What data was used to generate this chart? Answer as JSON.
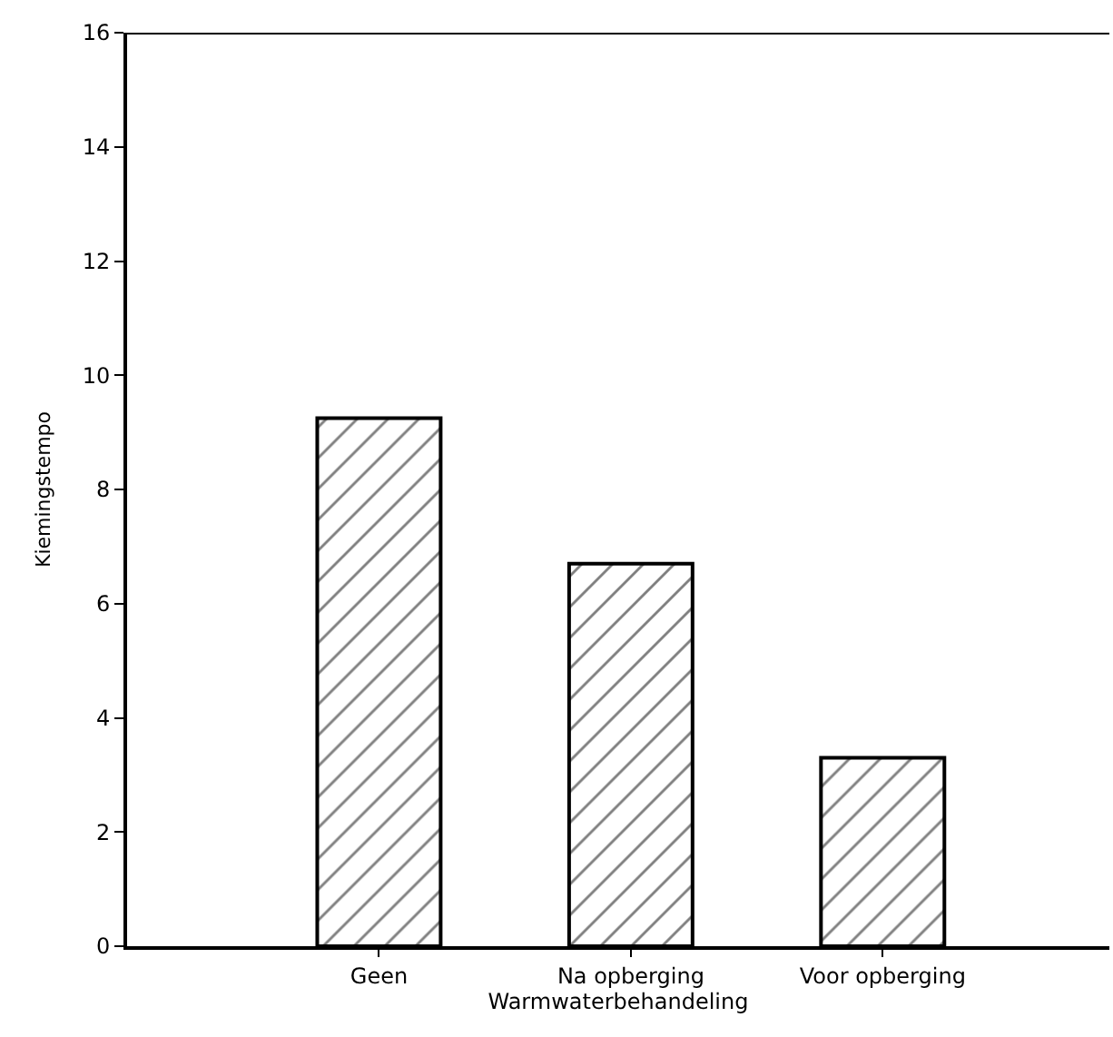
{
  "chart_data": {
    "type": "bar",
    "xlabel": "Warmwaterbehandeling",
    "ylabel": "Kiemingstempo",
    "categories": [
      "Geen",
      "Na opberging",
      "Voor opberging"
    ],
    "values": [
      9.25,
      6.7,
      3.3
    ],
    "color": "#000000",
    "ylim": [
      0,
      16
    ],
    "yticks": [
      0,
      2,
      4,
      6,
      8,
      10,
      12,
      14,
      16
    ],
    "legend": false
  }
}
